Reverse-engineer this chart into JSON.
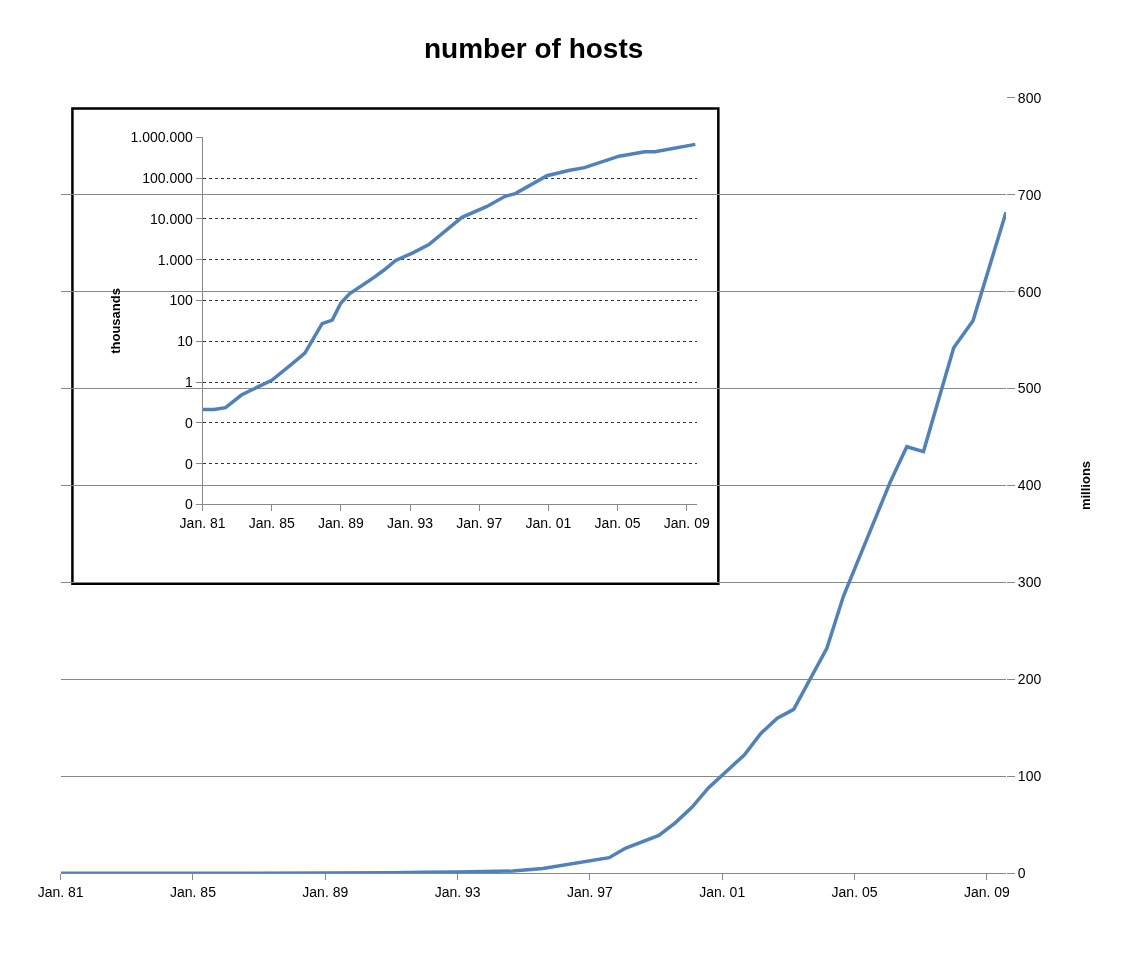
{
  "chart_data": [
    {
      "type": "line",
      "title": "number of hosts",
      "y2label": "millions",
      "grid": "y",
      "line_style": "solid",
      "xlim": [
        "1981-01",
        "2009-08"
      ],
      "xticks": [
        {
          "value": "1981-01",
          "label": "Jan. 81"
        },
        {
          "value": "1985-01",
          "label": "Jan. 85"
        },
        {
          "value": "1989-01",
          "label": "Jan. 89"
        },
        {
          "value": "1993-01",
          "label": "Jan. 93"
        },
        {
          "value": "1997-01",
          "label": "Jan. 97"
        },
        {
          "value": "2001-01",
          "label": "Jan. 01"
        },
        {
          "value": "2005-01",
          "label": "Jan. 05"
        },
        {
          "value": "2009-01",
          "label": "Jan. 09"
        }
      ],
      "y2lim": [
        0,
        800
      ],
      "y2ticks": [
        0,
        100,
        200,
        300,
        400,
        500,
        600,
        700,
        800
      ],
      "series": [
        {
          "color": "#4f81bd",
          "axis": "y2",
          "x": [
            "1981-01",
            "1985-01",
            "1989-01",
            "1991-01",
            "1992-01",
            "1993-01",
            "1994-09",
            "1995-08",
            "1997-08",
            "1998-02",
            "1999-02",
            "1999-08",
            "2000-02",
            "2000-08",
            "2001-09",
            "2002-03",
            "2002-09",
            "2003-03",
            "2004-03",
            "2004-09",
            "2005-07",
            "2006-02",
            "2006-08",
            "2007-02",
            "2008-01",
            "2008-08",
            "2009-08"
          ],
          "values": [
            0,
            0,
            0.1,
            0.4,
            1,
            1.3,
            2.2,
            4.8,
            16,
            26,
            39,
            52,
            68,
            88,
            122,
            144,
            160,
            169,
            232,
            286,
            355,
            404,
            440,
            435,
            542,
            570,
            682
          ]
        }
      ]
    },
    {
      "type": "line",
      "ylabel": "thousands",
      "grid": "y",
      "log": "y",
      "line_style": "solid",
      "xlim": [
        "1981-01",
        "2009-08"
      ],
      "xticks": [
        {
          "value": "1981-01",
          "label": "Jan. 81"
        },
        {
          "value": "1985-01",
          "label": "Jan. 85"
        },
        {
          "value": "1989-01",
          "label": "Jan. 89"
        },
        {
          "value": "1993-01",
          "label": "Jan. 93"
        },
        {
          "value": "1997-01",
          "label": "Jan. 97"
        },
        {
          "value": "2001-01",
          "label": "Jan. 01"
        },
        {
          "value": "2005-01",
          "label": "Jan. 05"
        },
        {
          "value": "2009-01",
          "label": "Jan. 09"
        }
      ],
      "ylim": [
        0.001,
        1000000
      ],
      "yticks": [
        {
          "value": 0.001,
          "label": "0"
        },
        {
          "value": 0.01,
          "label": "0"
        },
        {
          "value": 0.1,
          "label": "0"
        },
        1,
        10,
        100,
        {
          "value": 1000,
          "label": "1.000"
        },
        {
          "value": 10000,
          "label": "10.000"
        },
        {
          "value": 100000,
          "label": "100.000"
        },
        {
          "value": 1000000,
          "label": "1.000.000"
        }
      ],
      "series": [
        {
          "color": "#4f81bd",
          "x": [
            "1981-01",
            "1981-09",
            "1982-05",
            "1983-04",
            "1983-11",
            "1985-01",
            "1986-02",
            "1986-12",
            "1987-12",
            "1988-07",
            "1989-01",
            "1989-07",
            "1990-12",
            "1991-07",
            "1992-03",
            "1993-03",
            "1994-02",
            "1996-01",
            "1997-06",
            "1998-07",
            "1999-02",
            "2000-12",
            "2002-03",
            "2003-02",
            "2005-02",
            "2006-08",
            "2007-03",
            "2009-07"
          ],
          "values": [
            0.213,
            0.213,
            0.235,
            0.48,
            0.64,
            1.1,
            2.6,
            5.1,
            27,
            33,
            87,
            146,
            370,
            560,
            960,
            1480,
            2350,
            11000,
            20000,
            36000,
            42000,
            115000,
            155000,
            182000,
            347000,
            447000,
            447000,
            676000
          ]
        }
      ]
    }
  ]
}
